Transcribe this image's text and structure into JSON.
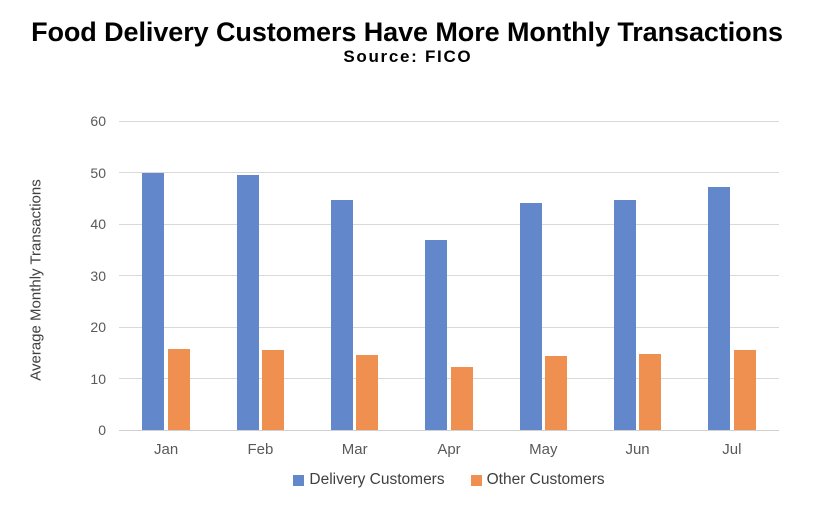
{
  "header": {
    "title": "Food Delivery Customers Have More Monthly Transactions",
    "subtitle": "Source: FICO"
  },
  "chart_data": {
    "type": "bar",
    "title": "Food Delivery Customers Have More Monthly Transactions",
    "subtitle": "Source: FICO",
    "categories": [
      "Jan",
      "Feb",
      "Mar",
      "Apr",
      "May",
      "Jun",
      "Jul"
    ],
    "series": [
      {
        "name": "Delivery Customers",
        "color": "#6288cb",
        "values": [
          50,
          49.6,
          44.6,
          36.8,
          44.1,
          44.6,
          47.1
        ]
      },
      {
        "name": "Other Customers",
        "color": "#ef9051",
        "values": [
          15.8,
          15.5,
          14.6,
          12.3,
          14.4,
          14.8,
          15.5
        ]
      }
    ],
    "xlabel": "",
    "ylabel": "Average Monthly Transactions",
    "ylim": [
      0,
      60
    ],
    "ytick_step": 10,
    "yticks": [
      0,
      10,
      20,
      30,
      40,
      50,
      60
    ],
    "grid": true,
    "gridline_color": "#d9d9d9",
    "legend_position": "bottom"
  }
}
